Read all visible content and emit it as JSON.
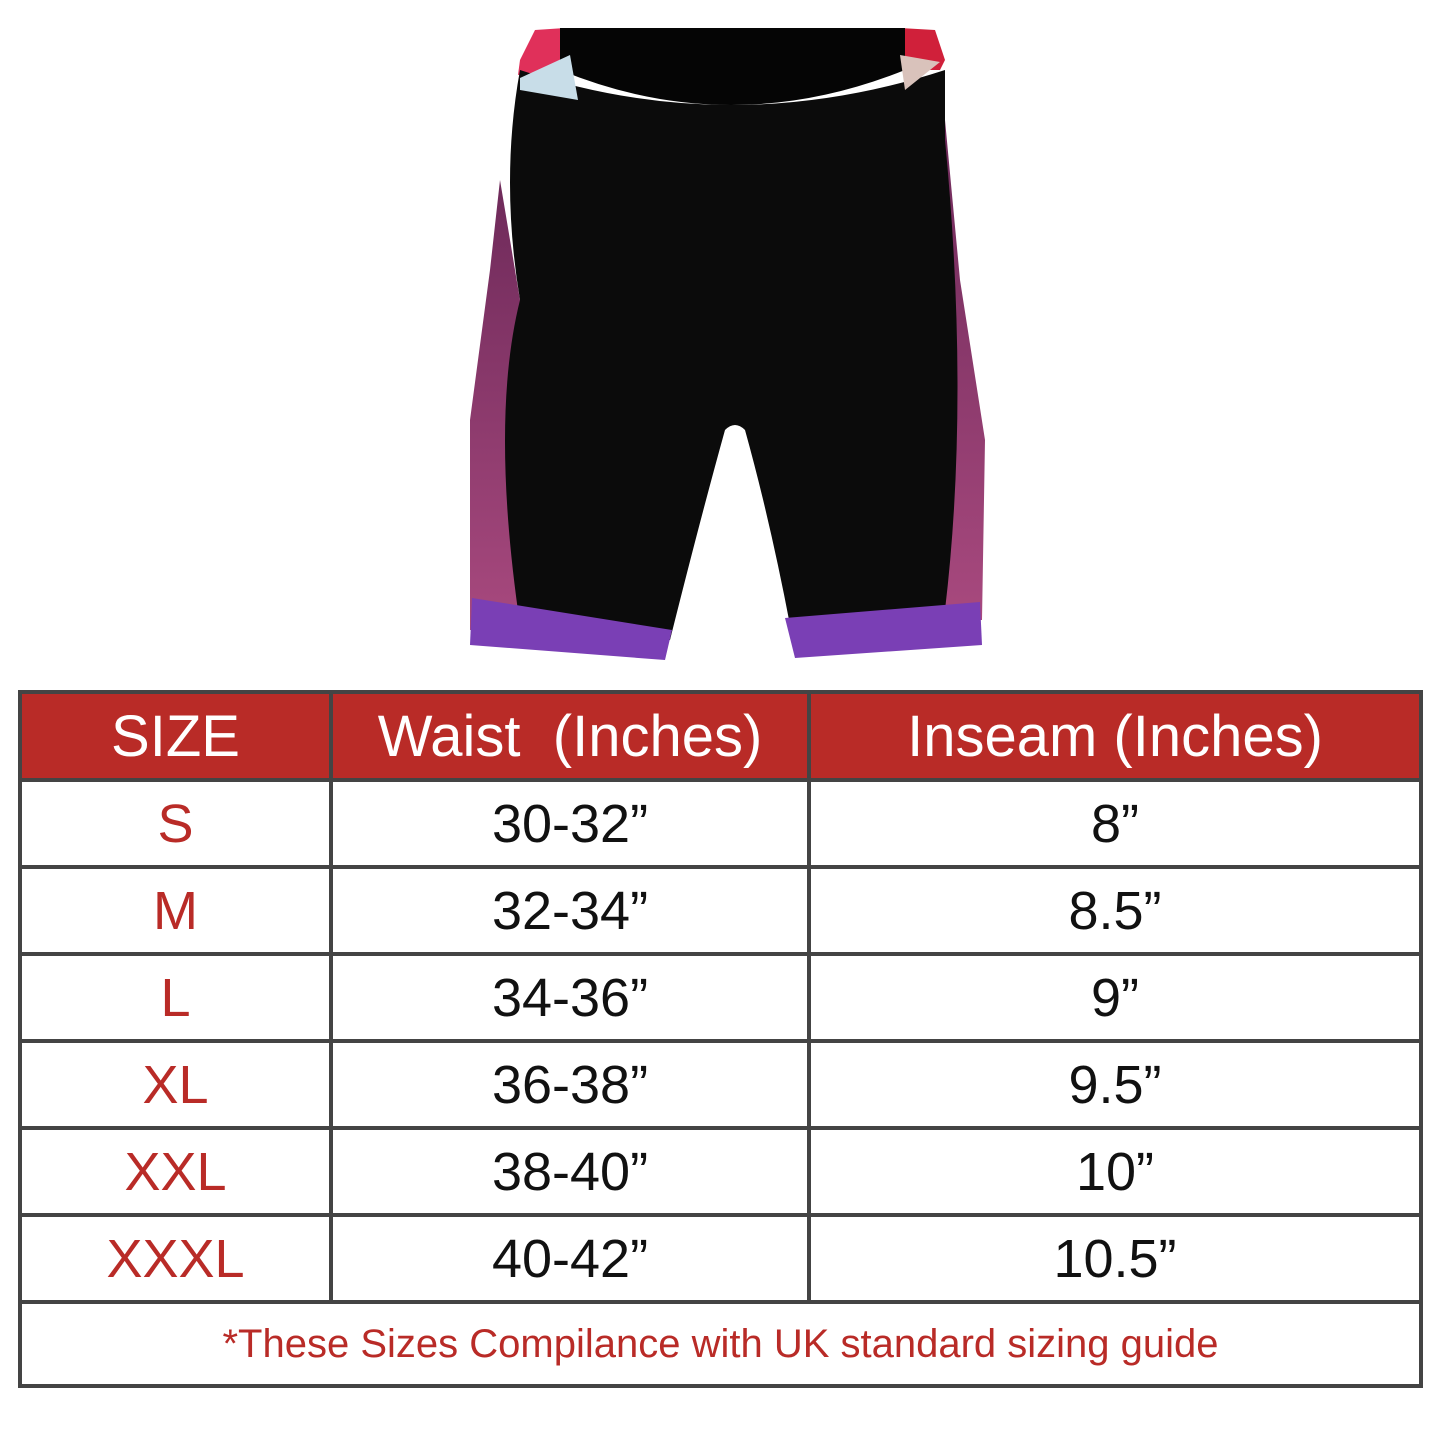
{
  "product_image": {
    "alt_colors": {
      "body": "#0b0b0b",
      "side_panel": "#9a3f78",
      "hem": "#7a3fb5",
      "waist_accent": "#e0305a"
    }
  },
  "size_chart": {
    "headers": [
      "SIZE",
      "Waist  (Inches)",
      "Inseam (Inches)"
    ],
    "rows": [
      {
        "size": "S",
        "waist": "30-32”",
        "inseam": "8”"
      },
      {
        "size": "M",
        "waist": "32-34”",
        "inseam": "8.5”"
      },
      {
        "size": "L",
        "waist": "34-36”",
        "inseam": "9”"
      },
      {
        "size": "XL",
        "waist": "36-38”",
        "inseam": "9.5”"
      },
      {
        "size": "XXL",
        "waist": "38-40”",
        "inseam": "10”"
      },
      {
        "size": "XXXL",
        "waist": "40-42”",
        "inseam": "10.5”"
      }
    ],
    "footnote": "*These Sizes Compilance with UK standard sizing guide",
    "colors": {
      "header_bg": "#b92b27",
      "size_text": "#b92b27",
      "border": "#444444"
    }
  }
}
